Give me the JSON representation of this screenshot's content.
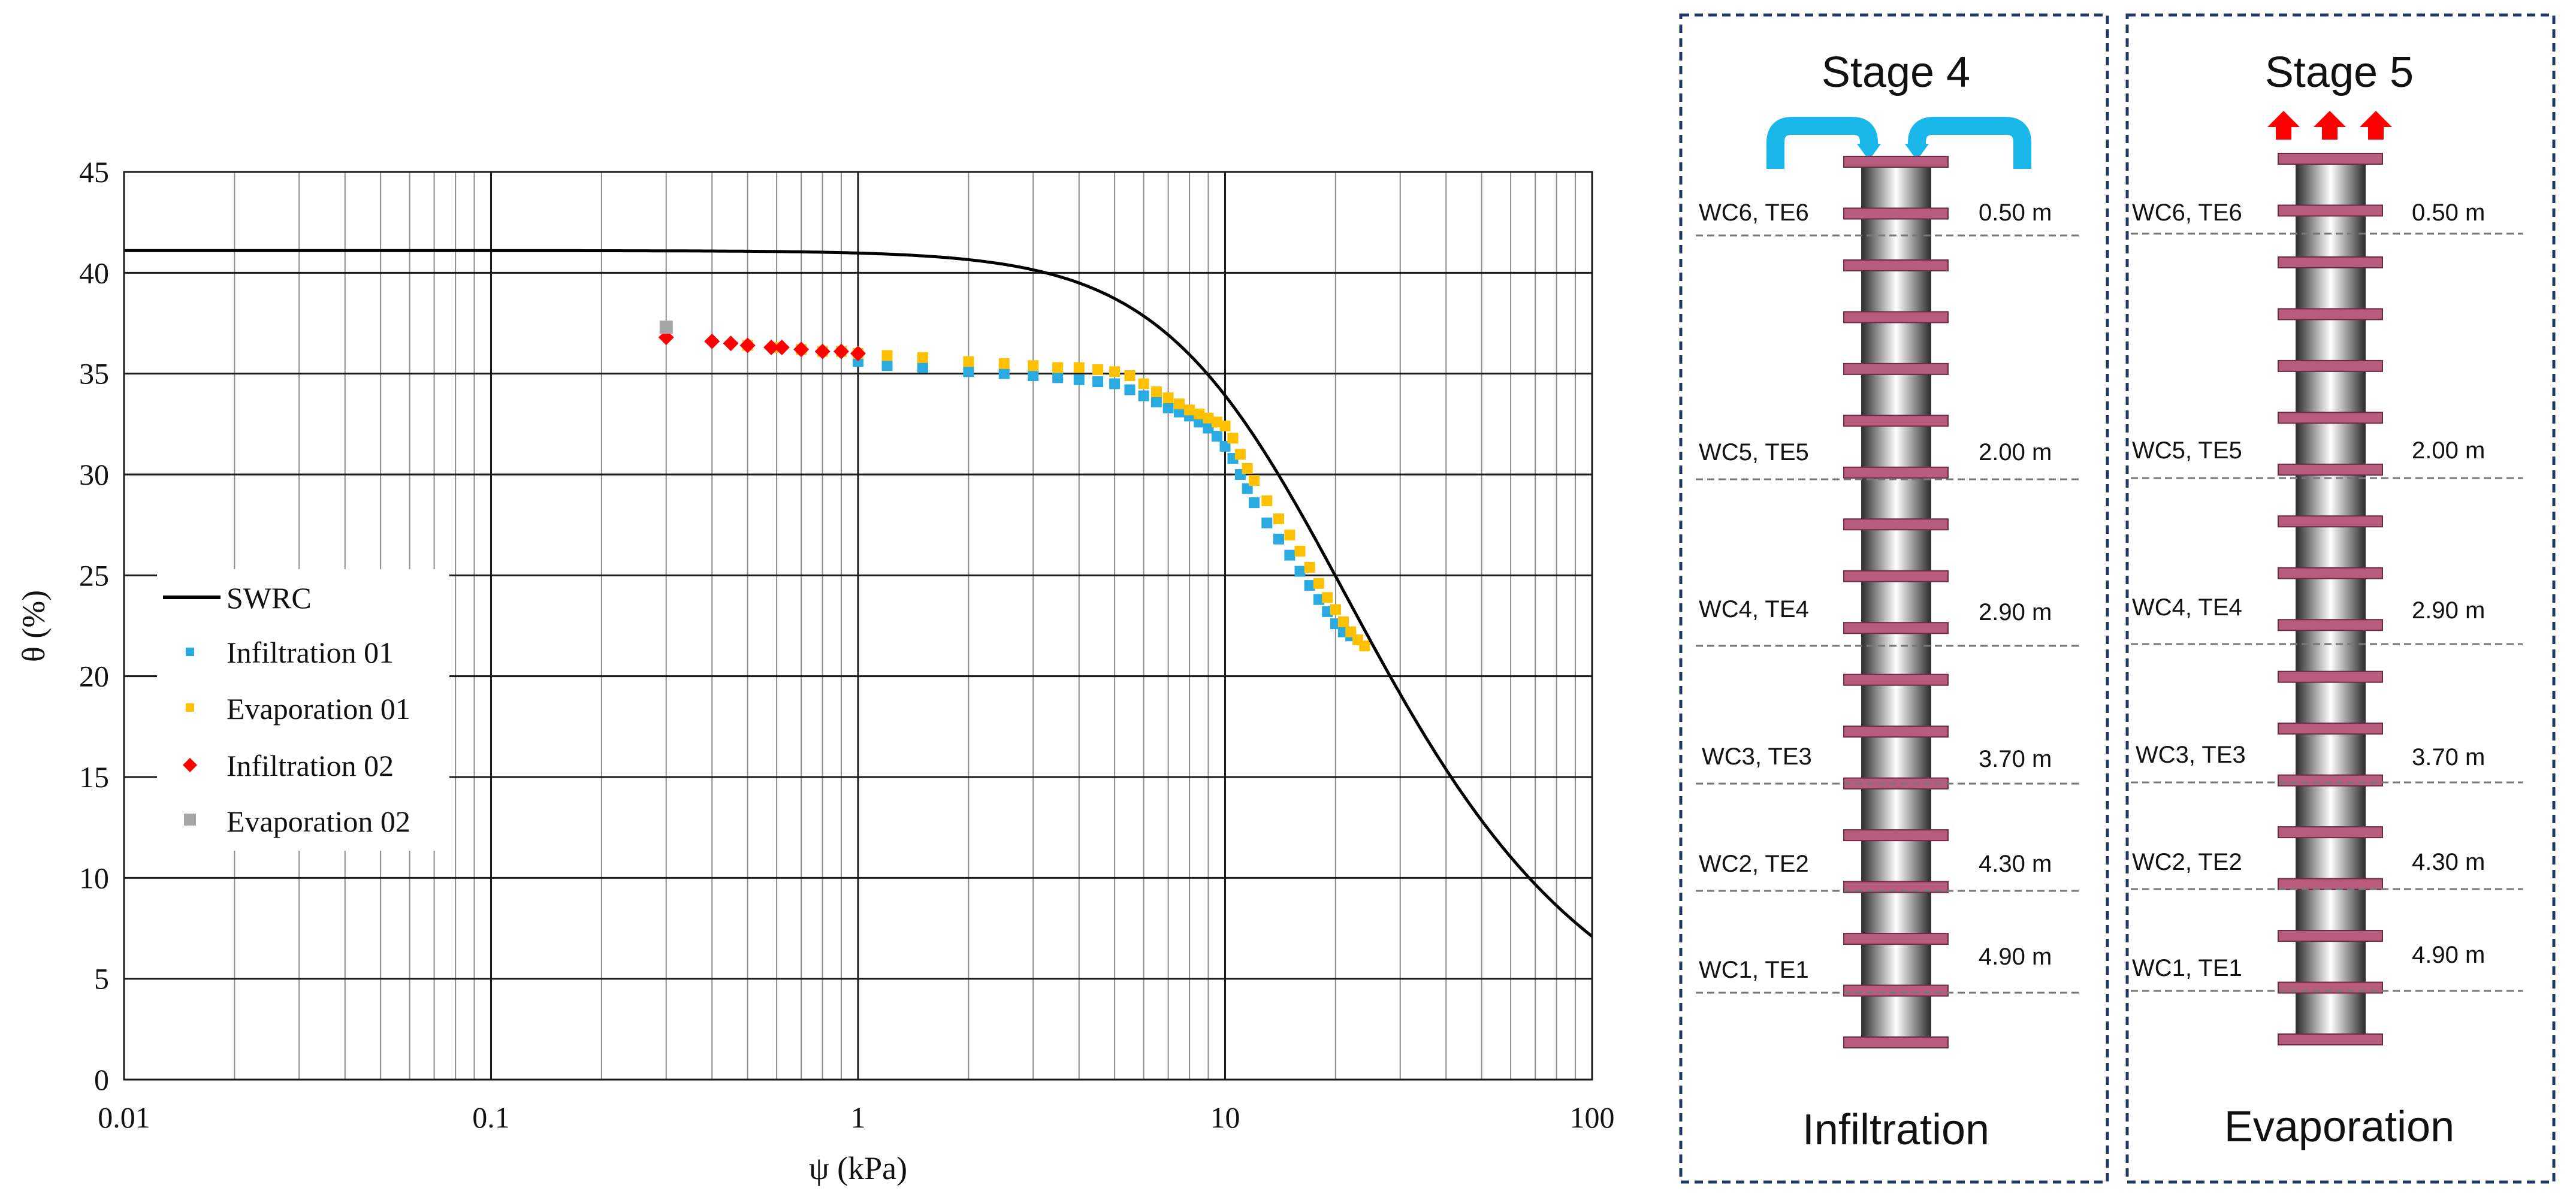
{
  "chart_data": {
    "type": "scatter",
    "xscale": "log",
    "xlim": [
      0.01,
      100
    ],
    "ylim": [
      0,
      45
    ],
    "yticks": [
      0,
      5,
      10,
      15,
      20,
      25,
      30,
      35,
      40,
      45
    ],
    "xticks": [
      0.01,
      0.1,
      1,
      10,
      100
    ],
    "xtick_labels": [
      "0.01",
      "0.1",
      "1",
      "10",
      "100"
    ],
    "xlabel": "ψ (kPa)",
    "ylabel": "θ (%)",
    "grid": true,
    "legend_position": "left-middle",
    "swrc_model": {
      "theta_r": 0,
      "theta_s": 41.1,
      "alpha_inv_kPa": 14.4,
      "n": 1.9
    },
    "series": [
      {
        "name": "SWRC",
        "kind": "line",
        "color": "#000000"
      },
      {
        "name": "Infiltration 01",
        "kind": "marker",
        "marker": "square",
        "color": "#29abe2",
        "x": [
          1,
          1.2,
          1.5,
          2,
          2.5,
          3,
          3.5,
          4,
          4.5,
          5,
          5.5,
          6,
          6.5,
          7,
          7.5,
          8,
          8.5,
          9,
          9.5,
          10,
          10.5,
          11,
          11.5,
          12,
          13,
          14,
          15,
          16,
          17,
          18,
          19,
          20,
          21,
          22
        ],
        "y": [
          35.6,
          35.4,
          35.3,
          35.1,
          35.0,
          34.9,
          34.8,
          34.7,
          34.6,
          34.5,
          34.2,
          33.9,
          33.6,
          33.3,
          33.1,
          32.9,
          32.6,
          32.3,
          31.9,
          31.4,
          30.8,
          30.0,
          29.3,
          28.6,
          27.6,
          26.8,
          26.0,
          25.2,
          24.5,
          23.8,
          23.2,
          22.6,
          22.2,
          22.0
        ]
      },
      {
        "name": "Evaporation 01",
        "kind": "marker",
        "marker": "square",
        "color": "#ffc000",
        "x": [
          0.5,
          0.6,
          0.7,
          0.8,
          0.9,
          1,
          1.2,
          1.5,
          2,
          2.5,
          3,
          3.5,
          4,
          4.5,
          5,
          5.5,
          6,
          6.5,
          7,
          7.5,
          8,
          8.5,
          9,
          9.5,
          10,
          10.5,
          11,
          11.5,
          12,
          13,
          14,
          15,
          16,
          17,
          18,
          19,
          20,
          21,
          22,
          23,
          24
        ],
        "y": [
          36.4,
          36.3,
          36.2,
          36.1,
          36.1,
          36.0,
          35.9,
          35.8,
          35.6,
          35.5,
          35.4,
          35.3,
          35.3,
          35.2,
          35.1,
          34.9,
          34.5,
          34.1,
          33.8,
          33.5,
          33.2,
          33.0,
          32.8,
          32.6,
          32.4,
          31.8,
          31.0,
          30.3,
          29.7,
          28.7,
          27.8,
          27.0,
          26.2,
          25.4,
          24.6,
          23.9,
          23.3,
          22.7,
          22.2,
          21.8,
          21.5
        ]
      },
      {
        "name": "Infiltration 02",
        "kind": "marker",
        "marker": "diamond",
        "color": "#ff0000",
        "x": [
          0.3,
          0.4,
          0.45,
          0.5,
          0.58,
          0.62,
          0.7,
          0.8,
          0.9,
          1.0
        ],
        "y": [
          36.8,
          36.6,
          36.5,
          36.4,
          36.3,
          36.3,
          36.2,
          36.1,
          36.1,
          36.0
        ]
      },
      {
        "name": "Evaporation 02",
        "kind": "marker",
        "marker": "square",
        "color": "#a6a6a6",
        "x": [
          0.3
        ],
        "y": [
          37.3
        ]
      }
    ]
  },
  "diagram": {
    "depth_labels": [
      "0.50 m",
      "2.00 m",
      "2.90 m",
      "3.70 m",
      "4.30 m",
      "4.90 m"
    ],
    "sensor_labels": [
      "WC6, TE6",
      "WC5, TE5",
      "WC4, TE4",
      "WC3, TE3",
      "WC2, TE2",
      "WC1, TE1"
    ],
    "panels": [
      {
        "stage": "Stage 4",
        "process": "Infiltration",
        "arrow_type": "inflow",
        "arrow_color": "#1ab7ea"
      },
      {
        "stage": "Stage 5",
        "process": "Evaporation",
        "arrow_type": "outflow",
        "arrow_color": "#ff0000"
      }
    ],
    "border_color": "#1f3864",
    "column_ring_color": "#b85c7e"
  }
}
